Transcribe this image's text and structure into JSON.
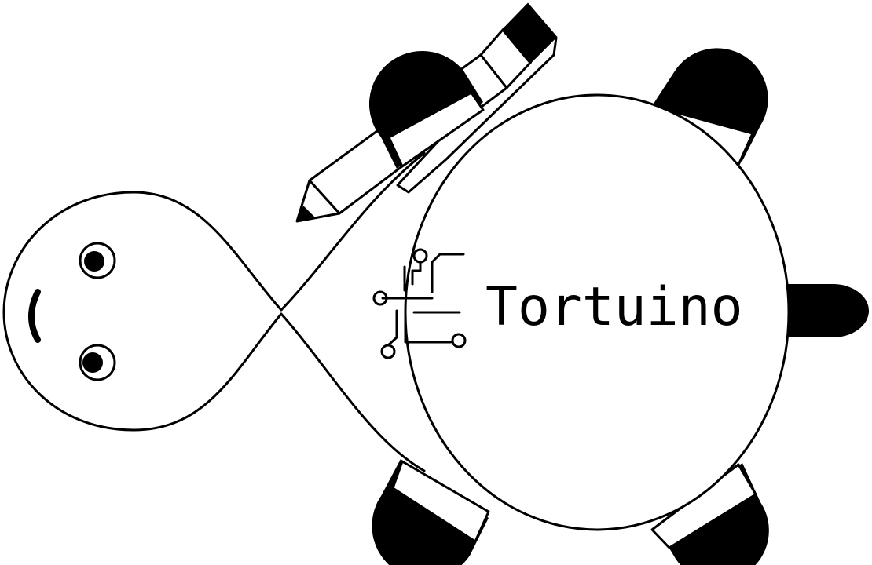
{
  "logo": {
    "wordmark": "Tortuino",
    "description_icons": [
      "circuit-trace-icon",
      "pencil-icon"
    ]
  },
  "colors": {
    "ink": "#000000",
    "background": "#ffffff"
  }
}
